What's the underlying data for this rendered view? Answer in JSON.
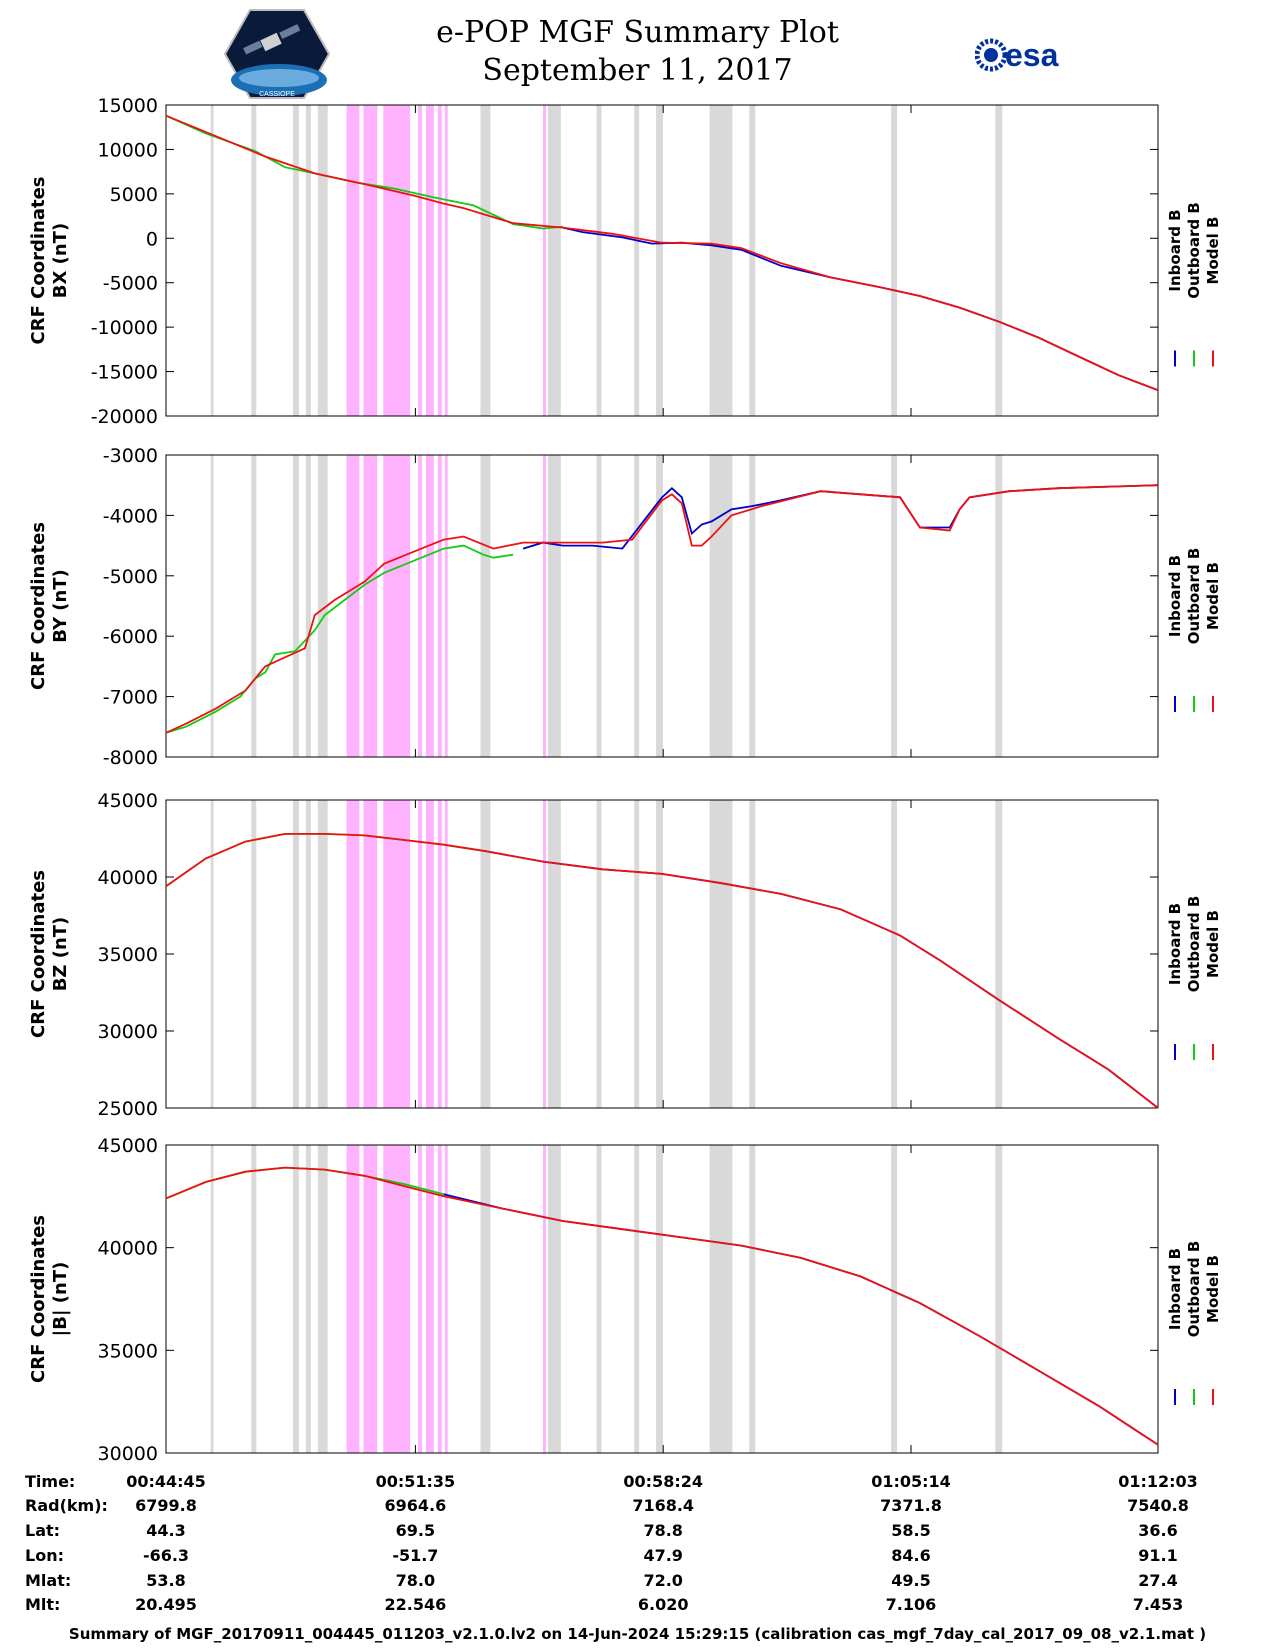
{
  "header": {
    "title": "e-POP MGF Summary Plot",
    "date": "September 11, 2017",
    "logo_left": "CASSIOPE",
    "logo_right": "esa"
  },
  "colors": {
    "inboard": "#0000cc",
    "outboard": "#11cc11",
    "model": "#ee1111",
    "gray_band": "#d9d9d9",
    "magenta_band": "#ffb3ff"
  },
  "legend": {
    "inboard": "Inboard B",
    "outboard": "Outboard B",
    "model": "Model B"
  },
  "chart_data": [
    {
      "type": "line",
      "title": "",
      "ylabel_line1": "CRF Coordinates",
      "ylabel_line2": "BX (nT)",
      "ylim": [
        -20000,
        15000
      ],
      "yticks": [
        15000,
        10000,
        5000,
        0,
        -5000,
        -10000,
        -15000,
        -20000
      ],
      "series": [
        {
          "name": "Outboard B",
          "x": [
            0,
            0.04,
            0.09,
            0.12,
            0.15,
            0.19,
            0.23,
            0.27,
            0.31,
            0.35,
            0.38,
            0.4
          ],
          "values": [
            13800,
            11800,
            9800,
            8000,
            7300,
            6300,
            5600,
            4600,
            3700,
            1600,
            1100,
            1300
          ]
        },
        {
          "name": "Inboard B",
          "x": [
            0.4,
            0.42,
            0.46,
            0.49,
            0.52,
            0.55,
            0.58,
            0.62,
            0.67,
            0.72,
            0.76,
            0.8,
            0.84,
            0.88,
            0.92,
            0.96,
            1.0
          ],
          "values": [
            1200,
            700,
            100,
            -600,
            -500,
            -800,
            -1300,
            -3100,
            -4400,
            -5500,
            -6500,
            -7800,
            -9400,
            -11200,
            -13300,
            -15400,
            -17100
          ]
        },
        {
          "name": "Model B",
          "x": [
            0,
            0.05,
            0.1,
            0.15,
            0.2,
            0.25,
            0.28,
            0.3,
            0.35,
            0.4,
            0.45,
            0.5,
            0.55,
            0.58,
            0.62,
            0.67,
            0.72,
            0.76,
            0.8,
            0.84,
            0.88,
            0.92,
            0.96,
            1.0
          ],
          "values": [
            13800,
            11500,
            9200,
            7300,
            6100,
            4800,
            3900,
            3400,
            1700,
            1200,
            500,
            -500,
            -600,
            -1100,
            -2800,
            -4400,
            -5500,
            -6500,
            -7800,
            -9400,
            -11200,
            -13300,
            -15400,
            -17100
          ]
        }
      ]
    },
    {
      "type": "line",
      "title": "",
      "ylabel_line1": "CRF Coordinates",
      "ylabel_line2": "BY (nT)",
      "ylim": [
        -8000,
        -3000
      ],
      "yticks": [
        -3000,
        -4000,
        -5000,
        -6000,
        -7000,
        -8000
      ],
      "series": [
        {
          "name": "Outboard B",
          "x": [
            0,
            0.02,
            0.05,
            0.075,
            0.09,
            0.1,
            0.11,
            0.13,
            0.15,
            0.16,
            0.18,
            0.2,
            0.22,
            0.25,
            0.28,
            0.3,
            0.32,
            0.33,
            0.35
          ],
          "values": [
            -7600,
            -7500,
            -7250,
            -7000,
            -6700,
            -6600,
            -6300,
            -6250,
            -5900,
            -5650,
            -5400,
            -5150,
            -4950,
            -4750,
            -4550,
            -4500,
            -4650,
            -4700,
            -4650
          ]
        },
        {
          "name": "Inboard B",
          "x": [
            0.36,
            0.38,
            0.4,
            0.43,
            0.46,
            0.5,
            0.51,
            0.52,
            0.53,
            0.54,
            0.55,
            0.57,
            0.59,
            0.62,
            0.66,
            0.7,
            0.74,
            0.76,
            0.79,
            0.8,
            0.81,
            0.85,
            0.9,
            1.0
          ],
          "values": [
            -4550,
            -4450,
            -4500,
            -4500,
            -4550,
            -3700,
            -3550,
            -3700,
            -4300,
            -4150,
            -4100,
            -3900,
            -3850,
            -3750,
            -3600,
            -3650,
            -3700,
            -4200,
            -4200,
            -3900,
            -3700,
            -3600,
            -3550,
            -3500
          ]
        },
        {
          "name": "Model B",
          "x": [
            0,
            0.02,
            0.05,
            0.08,
            0.1,
            0.12,
            0.14,
            0.15,
            0.17,
            0.2,
            0.22,
            0.25,
            0.28,
            0.3,
            0.33,
            0.36,
            0.4,
            0.44,
            0.47,
            0.5,
            0.51,
            0.52,
            0.53,
            0.54,
            0.55,
            0.57,
            0.6,
            0.66,
            0.7,
            0.74,
            0.76,
            0.79,
            0.8,
            0.81,
            0.85,
            0.9,
            1.0
          ],
          "values": [
            -7600,
            -7450,
            -7200,
            -6900,
            -6500,
            -6350,
            -6200,
            -5650,
            -5400,
            -5100,
            -4800,
            -4600,
            -4400,
            -4350,
            -4550,
            -4450,
            -4450,
            -4450,
            -4400,
            -3750,
            -3650,
            -3800,
            -4500,
            -4500,
            -4350,
            -4000,
            -3850,
            -3600,
            -3650,
            -3700,
            -4200,
            -4250,
            -3900,
            -3700,
            -3600,
            -3550,
            -3500
          ]
        }
      ]
    },
    {
      "type": "line",
      "title": "",
      "ylabel_line1": "CRF Coordinates",
      "ylabel_line2": "BZ (nT)",
      "ylim": [
        25000,
        45000
      ],
      "yticks": [
        45000,
        40000,
        35000,
        30000,
        25000
      ],
      "series": [
        {
          "name": "Outboard B",
          "x": [
            0,
            0.04,
            0.08,
            0.12,
            0.16,
            0.2,
            0.24,
            0.28,
            0.32
          ],
          "values": [
            39400,
            41200,
            42300,
            42800,
            42800,
            42700,
            42400,
            42100,
            41700
          ]
        },
        {
          "name": "Inboard B",
          "x": [
            0.32,
            0.38,
            0.44,
            0.5,
            0.56,
            0.62,
            0.68,
            0.74,
            0.78,
            0.84,
            0.9,
            0.95,
            1.0
          ],
          "values": [
            41700,
            41000,
            40500,
            40200,
            39600,
            38900,
            37900,
            36200,
            34600,
            32000,
            29500,
            27500,
            25000
          ]
        },
        {
          "name": "Model B",
          "x": [
            0,
            0.04,
            0.08,
            0.12,
            0.16,
            0.2,
            0.24,
            0.28,
            0.32,
            0.38,
            0.44,
            0.5,
            0.56,
            0.62,
            0.68,
            0.74,
            0.78,
            0.84,
            0.9,
            0.95,
            1.0
          ],
          "values": [
            39400,
            41200,
            42300,
            42800,
            42800,
            42700,
            42400,
            42100,
            41700,
            41000,
            40500,
            40200,
            39600,
            38900,
            37900,
            36200,
            34600,
            32000,
            29500,
            27500,
            25000
          ]
        }
      ]
    },
    {
      "type": "line",
      "title": "",
      "ylabel_line1": "CRF Coordinates",
      "ylabel_line2": "|B| (nT)",
      "ylim": [
        30000,
        45000
      ],
      "yticks": [
        45000,
        40000,
        35000,
        30000
      ],
      "series": [
        {
          "name": "Outboard B",
          "x": [
            0,
            0.04,
            0.08,
            0.12,
            0.16,
            0.2,
            0.24,
            0.28
          ],
          "values": [
            42400,
            43200,
            43700,
            43900,
            43800,
            43500,
            43100,
            42600
          ]
        },
        {
          "name": "Inboard B",
          "x": [
            0.28,
            0.34,
            0.4,
            0.46,
            0.52,
            0.58,
            0.64,
            0.7,
            0.76,
            0.82,
            0.88,
            0.94,
            1.0
          ],
          "values": [
            42600,
            41900,
            41300,
            40900,
            40500,
            40100,
            39500,
            38600,
            37300,
            35700,
            34000,
            32300,
            30400
          ]
        },
        {
          "name": "Model B",
          "x": [
            0,
            0.04,
            0.08,
            0.12,
            0.16,
            0.2,
            0.24,
            0.28,
            0.34,
            0.4,
            0.46,
            0.52,
            0.58,
            0.64,
            0.7,
            0.76,
            0.82,
            0.88,
            0.94,
            1.0
          ],
          "values": [
            42400,
            43200,
            43700,
            43900,
            43800,
            43500,
            43000,
            42500,
            41900,
            41300,
            40900,
            40500,
            40100,
            39500,
            38600,
            37300,
            35700,
            34000,
            32300,
            30400
          ]
        }
      ]
    }
  ],
  "bands": {
    "gray": [
      [
        0.045,
        0.048
      ],
      [
        0.086,
        0.091
      ],
      [
        0.128,
        0.134
      ],
      [
        0.141,
        0.146
      ],
      [
        0.153,
        0.163
      ],
      [
        0.317,
        0.327
      ],
      [
        0.385,
        0.398
      ],
      [
        0.434,
        0.439
      ],
      [
        0.472,
        0.477
      ],
      [
        0.494,
        0.501
      ],
      [
        0.548,
        0.571
      ],
      [
        0.588,
        0.594
      ],
      [
        0.731,
        0.737
      ],
      [
        0.836,
        0.843
      ]
    ],
    "magenta": [
      [
        0.182,
        0.195
      ],
      [
        0.199,
        0.213
      ],
      [
        0.219,
        0.246
      ],
      [
        0.254,
        0.258
      ],
      [
        0.262,
        0.27
      ],
      [
        0.274,
        0.278
      ],
      [
        0.281,
        0.284
      ],
      [
        0.38,
        0.383
      ]
    ]
  },
  "time_table": {
    "labels": [
      "Time:",
      "Rad(km):",
      "Lat:",
      "Lon:",
      "Mlat:",
      "Mlt:"
    ],
    "columns": [
      [
        "00:44:45",
        "6799.8",
        "44.3",
        "-66.3",
        "53.8",
        "20.495"
      ],
      [
        "00:51:35",
        "6964.6",
        "69.5",
        "-51.7",
        "78.0",
        "22.546"
      ],
      [
        "00:58:24",
        "7168.4",
        "78.8",
        "47.9",
        "72.0",
        "6.020"
      ],
      [
        "01:05:14",
        "7371.8",
        "58.5",
        "84.6",
        "49.5",
        "7.106"
      ],
      [
        "01:12:03",
        "7540.8",
        "36.6",
        "91.1",
        "27.4",
        "7.453"
      ]
    ]
  },
  "footer": "Summary of MGF_20170911_004445_011203_v2.1.0.lv2 on 14-Jun-2024 15:29:15 (calibration cas_mgf_7day_cal_2017_09_08_v2.1.mat )"
}
